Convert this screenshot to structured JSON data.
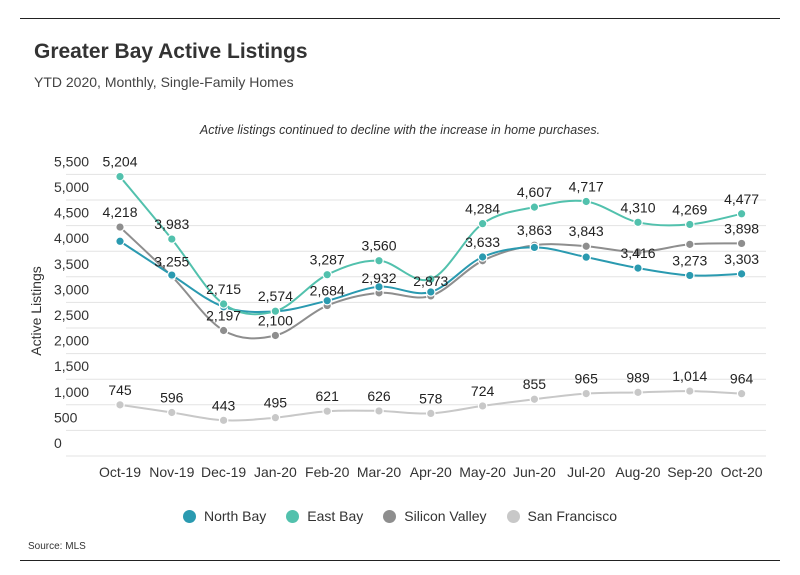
{
  "header": {
    "title": "Greater Bay Active Listings",
    "subtitle": "YTD 2020, Monthly, Single-Family Homes"
  },
  "footer": {
    "source": "Source: MLS"
  },
  "chart_data": {
    "type": "line",
    "title": "Greater Bay Active Listings",
    "subtitle": "YTD 2020, Monthly, Single-Family Homes",
    "annotation": "Active listings continued to decline with the increase in home purchases.",
    "xlabel": "",
    "ylabel": "Active Listings",
    "ylim": [
      0,
      5500
    ],
    "yticks": [
      0,
      500,
      1000,
      1500,
      2000,
      2500,
      3000,
      3500,
      4000,
      4500,
      5000,
      5500
    ],
    "ytick_labels": [
      "0",
      "500",
      "1,000",
      "1,500",
      "2,000",
      "2,500",
      "3,000",
      "3,500",
      "4,000",
      "4,500",
      "5,000",
      "5,500"
    ],
    "grid": true,
    "legend": "bottom",
    "categories": [
      "Oct-19",
      "Nov-19",
      "Dec-19",
      "Jan-20",
      "Feb-20",
      "Mar-20",
      "Apr-20",
      "May-20",
      "Jun-20",
      "Jul-20",
      "Aug-20",
      "Sep-20",
      "Oct-20"
    ],
    "series": [
      {
        "name": "North Bay",
        "color": "#2a9ab0",
        "values": [
          3940,
          3280,
          2660,
          2570,
          2780,
          3050,
          2950,
          3633,
          3820,
          3630,
          3416,
          3273,
          3303
        ],
        "labels": [
          null,
          null,
          null,
          null,
          null,
          null,
          null,
          "3,633",
          null,
          null,
          "3,416",
          "3,273",
          "3,303"
        ]
      },
      {
        "name": "East Bay",
        "color": "#52c1ad",
        "values": [
          5204,
          3983,
          2715,
          2574,
          3287,
          3560,
          3200,
          4284,
          4607,
          4717,
          4310,
          4269,
          4477
        ],
        "labels": [
          "5,204",
          "3,983",
          "2,715",
          "2,574",
          "3,287",
          "3,560",
          null,
          "4,284",
          "4,607",
          "4,717",
          "4,310",
          "4,269",
          "4,477"
        ]
      },
      {
        "name": "Silicon Valley",
        "color": "#8e8e8e",
        "values": [
          4218,
          3255,
          2197,
          2100,
          2684,
          2932,
          2873,
          3560,
          3863,
          3843,
          3730,
          3880,
          3898
        ],
        "labels": [
          "4,218",
          "3,255",
          "2,197",
          "2,100",
          "2,684",
          "2,932",
          "2,873",
          null,
          "3,863",
          "3,843",
          null,
          null,
          "3,898"
        ]
      },
      {
        "name": "San Francisco",
        "color": "#c8c8c8",
        "values": [
          745,
          596,
          443,
          495,
          621,
          626,
          578,
          724,
          855,
          965,
          989,
          1014,
          964
        ],
        "labels": [
          "745",
          "596",
          "443",
          "495",
          "621",
          "626",
          "578",
          "724",
          "855",
          "965",
          "989",
          "1,014",
          "964"
        ]
      }
    ]
  }
}
